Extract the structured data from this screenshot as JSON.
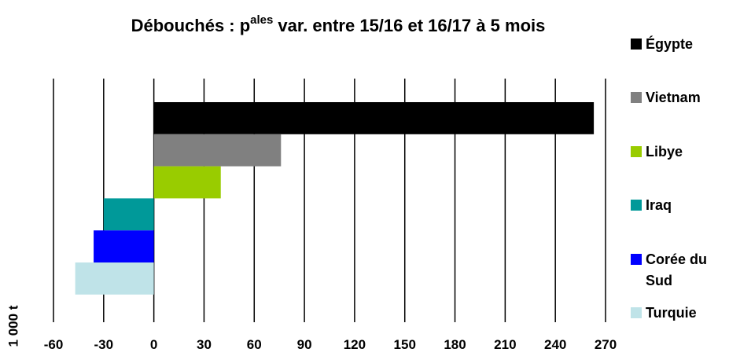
{
  "chart_data": {
    "type": "bar",
    "orientation": "horizontal",
    "title": [
      "Débouchés : p",
      "ales",
      "var. entre 15/16 et 16/17 à 5 mois"
    ],
    "x_label": "1 000 t",
    "categories": [
      "Égypte",
      "Vietnam",
      "Libye",
      "Iraq",
      "Corée du Sud",
      "Turquie"
    ],
    "values": [
      263,
      76,
      40,
      -30,
      -36,
      -47
    ],
    "colors": [
      "#000000",
      "#808080",
      "#99cc00",
      "#009999",
      "#0000ff",
      "#bfe3e8"
    ],
    "xlim": [
      -60,
      270
    ],
    "xticks": [
      -60,
      -30,
      0,
      30,
      60,
      90,
      120,
      150,
      180,
      210,
      240,
      270
    ],
    "grid": true
  }
}
